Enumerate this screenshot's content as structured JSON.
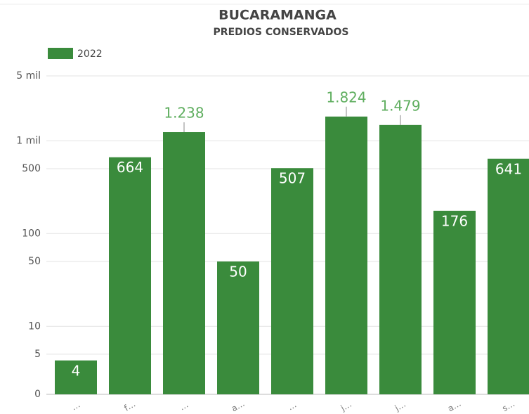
{
  "chart_data": {
    "type": "bar",
    "title": "BUCARAMANGA",
    "subtitle": "PREDIOS CONSERVADOS",
    "categories": [
      "…",
      "f…",
      "…",
      "a…",
      "…",
      "j…",
      "j…",
      "a…",
      "s…"
    ],
    "series": [
      {
        "name": "2022",
        "color": "#3a8b3c",
        "values": [
          4,
          664,
          1238,
          50,
          507,
          1824,
          1479,
          176,
          641
        ],
        "value_labels": [
          "4",
          "664",
          "1.238",
          "50",
          "507",
          "1.824",
          "1.479",
          "176",
          "641"
        ]
      }
    ],
    "yscale": "symlog",
    "ylim": [
      0,
      5000
    ],
    "yticks": [
      0,
      5,
      10,
      50,
      100,
      500,
      {
        "value": 1000,
        "label": "1 mil"
      },
      {
        "value": 5000,
        "label": "5 mil"
      }
    ],
    "grid": true,
    "legend": "top-left"
  }
}
